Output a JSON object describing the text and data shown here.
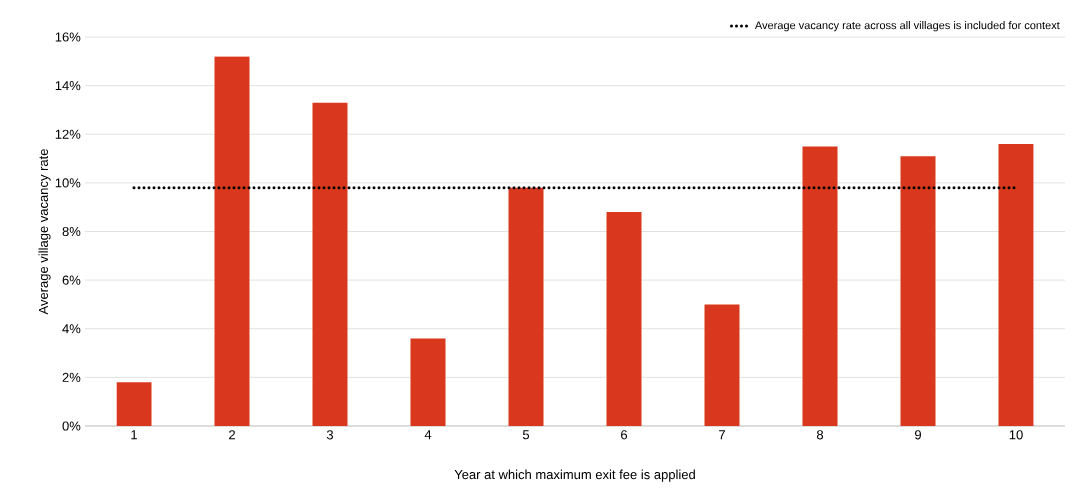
{
  "chart_data": {
    "type": "bar",
    "categories": [
      "1",
      "2",
      "3",
      "4",
      "5",
      "6",
      "7",
      "8",
      "9",
      "10"
    ],
    "xlabel": "Year at which maximum exit fee is applied",
    "ylabel": "Average village vacancy rate",
    "series": [
      {
        "color": "#d9381e",
        "values": [
          1.8,
          15.2,
          13.3,
          3.6,
          9.8,
          8.8,
          5.0,
          11.5,
          11.1,
          11.6
        ]
      },
      {
        "type": "line",
        "name": "Average vacancy rate across all villages is included for context",
        "color": "#000000",
        "line_style": "dotted",
        "marker": "none",
        "values": [
          9.8,
          9.8,
          9.8,
          9.8,
          9.8,
          9.8,
          9.8,
          9.8,
          9.8,
          9.8
        ]
      }
    ],
    "ylim": [
      0,
      16
    ],
    "yticks": [
      {
        "value": 0,
        "label": "0%"
      },
      {
        "value": 2,
        "label": "2%"
      },
      {
        "value": 4,
        "label": "4%"
      },
      {
        "value": 6,
        "label": "6%"
      },
      {
        "value": 8,
        "label": "8%"
      },
      {
        "value": 10,
        "label": "10%"
      },
      {
        "value": 12,
        "label": "12%"
      },
      {
        "value": 14,
        "label": "14%"
      },
      {
        "value": 16,
        "label": "16%"
      }
    ],
    "grid": "y",
    "legend": "top right"
  }
}
